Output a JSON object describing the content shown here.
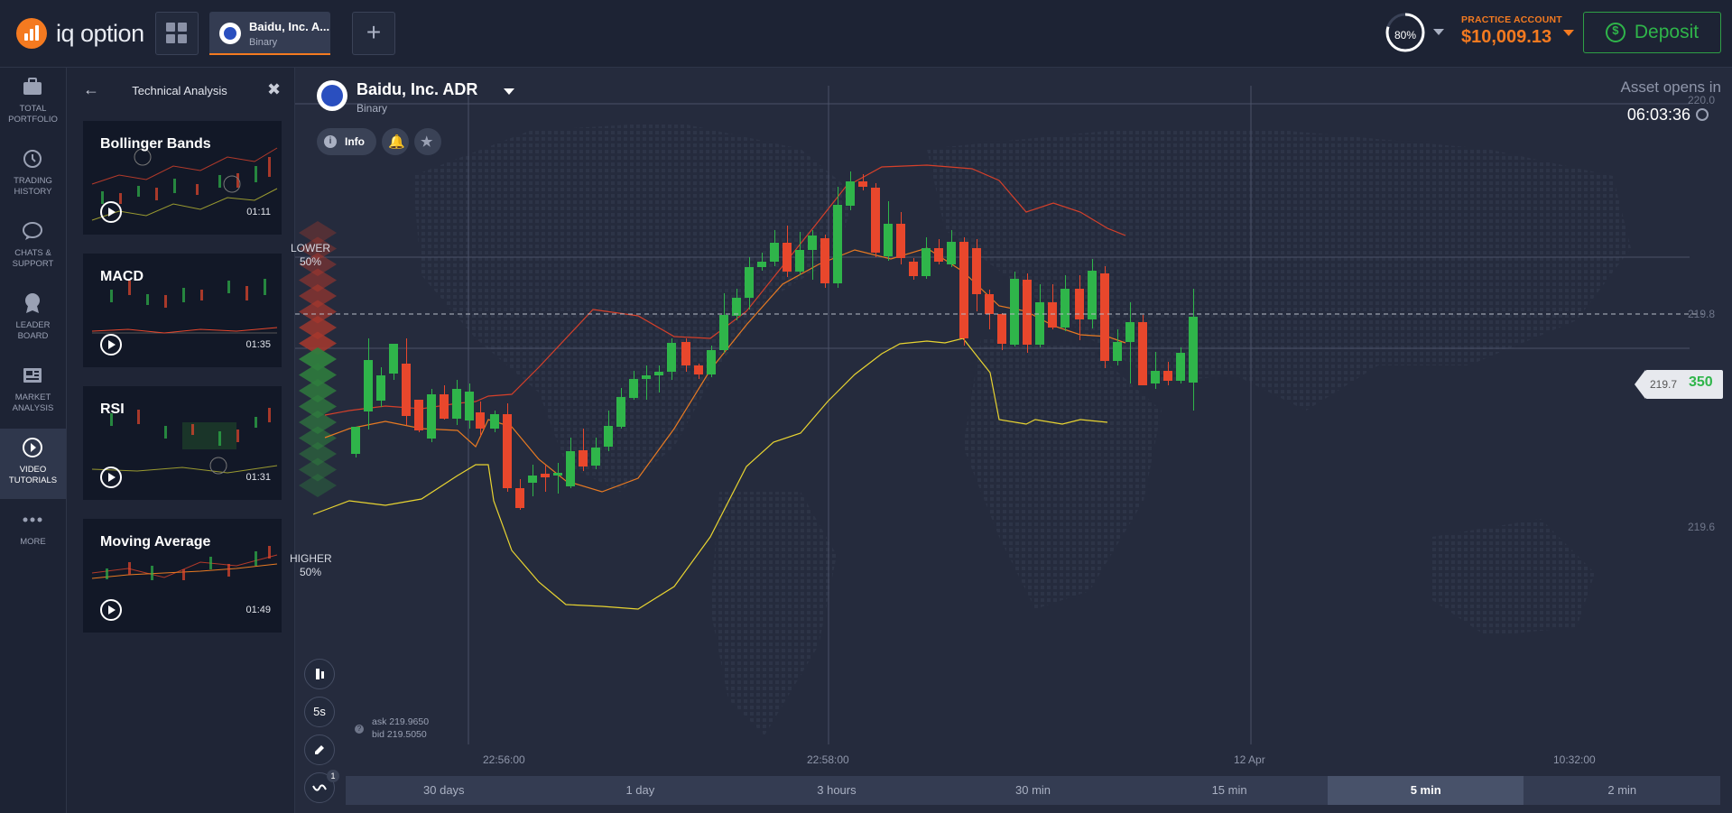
{
  "brand": {
    "name": "iq option",
    "accent": "#f47a20"
  },
  "tabs": [
    {
      "title": "Baidu, Inc. A...",
      "subtitle": "Binary"
    }
  ],
  "account": {
    "profit_gauge": "80%",
    "type": "PRACTICE ACCOUNT",
    "balance": "$10,009.13",
    "deposit_label": "Deposit"
  },
  "nav": [
    {
      "label": "TOTAL\nPORTFOLIO",
      "icon": "briefcase-icon"
    },
    {
      "label": "TRADING\nHISTORY",
      "icon": "history-icon"
    },
    {
      "label": "CHATS &\nSUPPORT",
      "icon": "chat-icon"
    },
    {
      "label": "LEADER\nBOARD",
      "icon": "trophy-icon"
    },
    {
      "label": "MARKET\nANALYSIS",
      "icon": "newspaper-icon"
    },
    {
      "label": "VIDEO\nTUTORIALS",
      "icon": "play-circle-icon",
      "active": true
    },
    {
      "label": "MORE",
      "icon": "more-dots-icon"
    }
  ],
  "panel": {
    "title": "Technical Analysis",
    "videos": [
      {
        "title": "Bollinger Bands",
        "duration": "01:11"
      },
      {
        "title": "MACD",
        "duration": "01:35"
      },
      {
        "title": "RSI",
        "duration": "01:31"
      },
      {
        "title": "Moving Average",
        "duration": "01:49"
      }
    ]
  },
  "asset": {
    "name": "Baidu, Inc. ADR",
    "type": "Binary",
    "info_label": "Info",
    "opens_label": "Asset opens in",
    "opens_time": "06:03:36"
  },
  "sentiment": {
    "lower_label": "LOWER",
    "lower_pct": "50%",
    "higher_label": "HIGHER",
    "higher_pct": "50%"
  },
  "price": {
    "current_prefix": "219.7",
    "current_suffix": "350",
    "ask": "ask 219.9650",
    "bid": "bid 219.5050"
  },
  "tools": {
    "interval": "5s",
    "indicator_count": "1"
  },
  "ranges": [
    {
      "label": "30 days"
    },
    {
      "label": "1 day"
    },
    {
      "label": "3 hours"
    },
    {
      "label": "30 min"
    },
    {
      "label": "15 min"
    },
    {
      "label": "5 min",
      "active": true
    },
    {
      "label": "2 min"
    }
  ],
  "chart_data": {
    "type": "candlestick",
    "y_ticks": [
      "220.0",
      "219.8",
      "219.6"
    ],
    "x_ticks": [
      "22:56:00",
      "22:58:00",
      "12 Apr",
      "10:32:00"
    ],
    "colors": {
      "up": "#2fb54a",
      "down": "#e8472c",
      "bollinger": "#d6402a",
      "sma": "#e87a22",
      "lower_band": "#e8d431"
    }
  }
}
